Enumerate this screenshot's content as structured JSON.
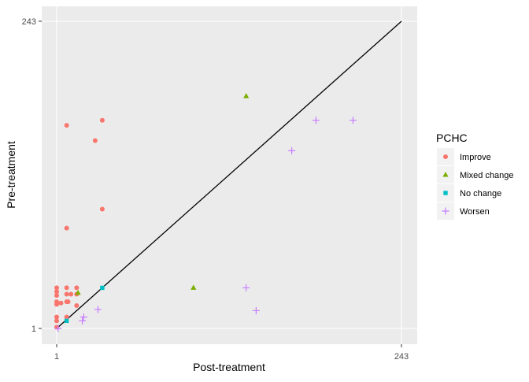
{
  "chart_data": {
    "type": "scatter",
    "xlabel": "Post-treatment",
    "ylabel": "Pre-treatment",
    "xlim": [
      1,
      243
    ],
    "ylim": [
      1,
      243
    ],
    "x_ticks": [
      "1",
      "243"
    ],
    "y_ticks": [
      "1",
      "243"
    ],
    "grid": true,
    "reference_line": {
      "from": [
        1,
        1
      ],
      "to": [
        243,
        243
      ]
    },
    "legend": {
      "title": "PCHC",
      "placement": "right"
    },
    "series": [
      {
        "name": "Improve",
        "color": "#F8766D",
        "shape": "circle",
        "points": [
          [
            1,
            33
          ],
          [
            1,
            30
          ],
          [
            1,
            27
          ],
          [
            8,
            33
          ],
          [
            8,
            28
          ],
          [
            11,
            28
          ],
          [
            15,
            33
          ],
          [
            15,
            28
          ],
          [
            1,
            22
          ],
          [
            1,
            20
          ],
          [
            4,
            21
          ],
          [
            8,
            22
          ],
          [
            9,
            22
          ],
          [
            15,
            19
          ],
          [
            1,
            10
          ],
          [
            1,
            7
          ],
          [
            8,
            10
          ],
          [
            1,
            2
          ],
          [
            8,
            161
          ],
          [
            33,
            165
          ],
          [
            28,
            149
          ],
          [
            33,
            95
          ],
          [
            8,
            80
          ]
        ]
      },
      {
        "name": "Mixed change",
        "color": "#7CAE00",
        "shape": "triangle",
        "points": [
          [
            16,
            29
          ],
          [
            97,
            33
          ],
          [
            134,
            184
          ]
        ]
      },
      {
        "name": "No change",
        "color": "#00BFC4",
        "shape": "square",
        "points": [
          [
            33,
            33
          ],
          [
            8,
            7
          ]
        ]
      },
      {
        "name": "Worsen",
        "color": "#C77CFF",
        "shape": "plus",
        "points": [
          [
            2,
            1
          ],
          [
            20,
            10
          ],
          [
            19,
            7
          ],
          [
            30,
            16
          ],
          [
            134,
            33
          ],
          [
            141,
            15
          ],
          [
            166,
            141
          ],
          [
            183,
            165
          ],
          [
            209,
            165
          ]
        ]
      }
    ]
  }
}
